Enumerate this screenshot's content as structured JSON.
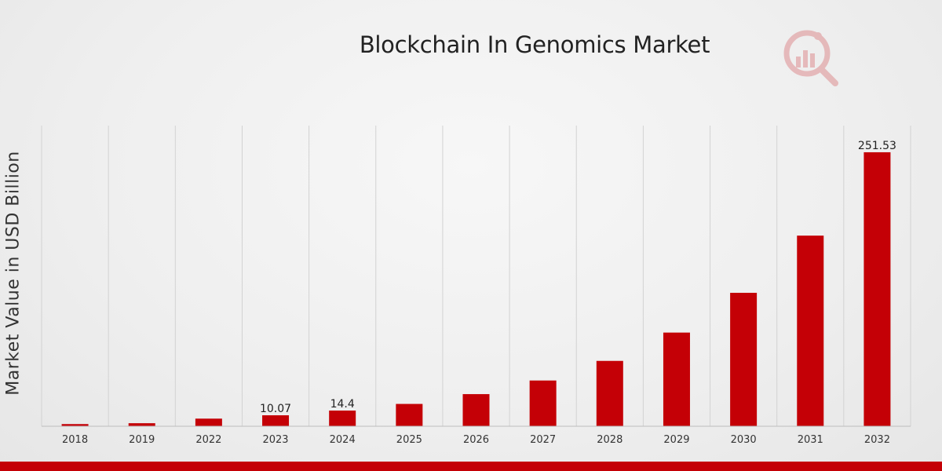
{
  "chart_data": {
    "type": "bar",
    "title": "Blockchain In Genomics Market",
    "ylabel": "Market Value in USD Billion",
    "xlabel": "",
    "categories": [
      "2018",
      "2019",
      "2022",
      "2023",
      "2024",
      "2025",
      "2026",
      "2027",
      "2028",
      "2029",
      "2030",
      "2031",
      "2032"
    ],
    "values": [
      2.0,
      2.8,
      7.0,
      10.07,
      14.4,
      20.5,
      29.5,
      42.0,
      60.0,
      86.0,
      122.5,
      175.0,
      251.53
    ],
    "data_labels": [
      "",
      "",
      "",
      "10.07",
      "14.4",
      "",
      "",
      "",
      "",
      "",
      "",
      "",
      "251.53"
    ],
    "ylim": [
      0,
      276
    ],
    "grid": "vertical",
    "legend": "none",
    "bar_color": "#c40006"
  },
  "colors": {
    "accent": "#c40006",
    "gridline": "#d2d2d2",
    "axis": "#bdbdbd"
  },
  "watermark": {
    "icon": "market-research-logo-icon"
  }
}
